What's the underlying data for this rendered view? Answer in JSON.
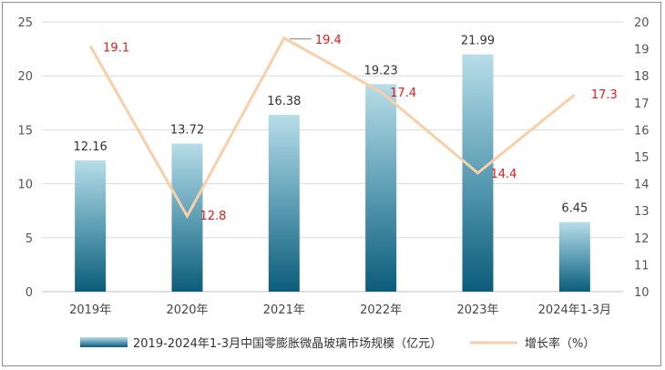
{
  "chart_data": {
    "type": "bar",
    "categories": [
      "2019年",
      "2020年",
      "2021年",
      "2022年",
      "2023年",
      "2024年1-3月"
    ],
    "series": [
      {
        "name": "2019-2024年1-3月中国零膨胀微晶玻璃市场规模（亿元）",
        "type": "bar",
        "axis": "left",
        "values": [
          12.16,
          13.72,
          16.38,
          19.23,
          21.99,
          6.45
        ],
        "labels": [
          "12.16",
          "13.72",
          "16.38",
          "19.23",
          "21.99",
          "6.45"
        ]
      },
      {
        "name": "增长率（%）",
        "type": "line",
        "axis": "right",
        "values": [
          19.1,
          12.8,
          19.4,
          17.4,
          14.4,
          17.3
        ],
        "labels": [
          "19.1",
          "12.8",
          "19.4",
          "17.4",
          "14.4",
          "17.3"
        ]
      }
    ],
    "y_left": {
      "min": 0,
      "max": 25,
      "ticks": [
        "0",
        "5",
        "10",
        "15",
        "20",
        "25"
      ]
    },
    "y_right": {
      "min": 10,
      "max": 20,
      "ticks": [
        "10",
        "11",
        "12",
        "13",
        "14",
        "15",
        "16",
        "17",
        "18",
        "19",
        "20"
      ]
    },
    "grid": true,
    "legend_position": "bottom",
    "colors": {
      "bar_top": "#b7dde8",
      "bar_bottom": "#0b5c7a",
      "line": "#f7cfa8",
      "rate_label": "#e31a1a",
      "grid": "#d9d9d9"
    }
  }
}
